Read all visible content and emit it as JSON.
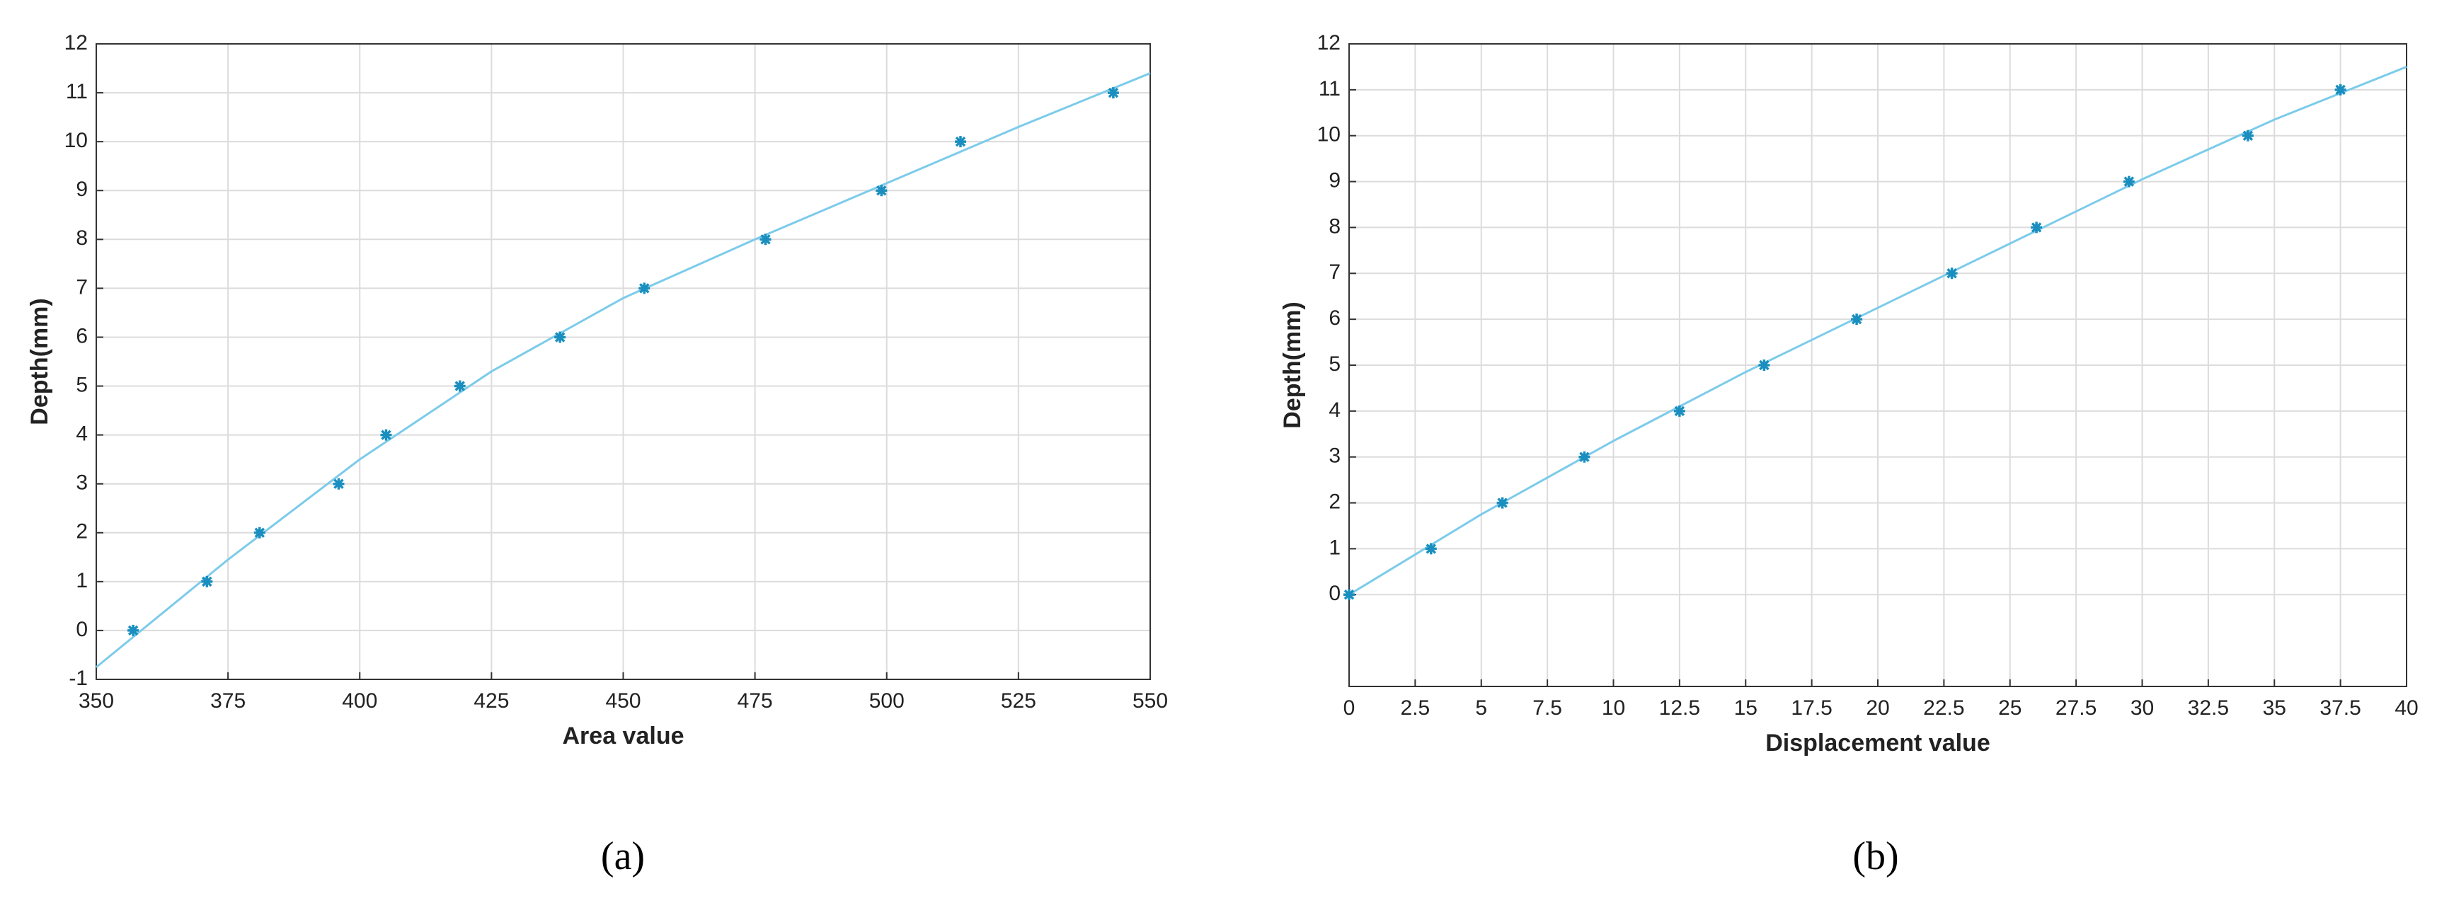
{
  "chart_data": [
    {
      "type": "scatter",
      "caption": "(a)",
      "x_label": "Area value",
      "y_label": "Depth(mm)",
      "x": [
        357,
        371,
        381,
        396,
        405,
        419,
        438,
        454,
        477,
        499,
        514,
        543
      ],
      "values": [
        0,
        1,
        2,
        3,
        4,
        5,
        6,
        7,
        8,
        9,
        10,
        11
      ],
      "fit_x": [
        350,
        375,
        400,
        425,
        450,
        475,
        500,
        525,
        550
      ],
      "fit_values": [
        -0.75,
        1.45,
        3.5,
        5.3,
        6.8,
        8.0,
        9.15,
        10.3,
        11.4
      ],
      "marker_color": "#1a8fbf",
      "line_color": "#7ccbea",
      "xlim": [
        350,
        550
      ],
      "xticks": [
        350,
        375,
        400,
        425,
        450,
        475,
        500,
        525,
        550
      ],
      "ylim": [
        -1,
        12
      ],
      "yticks": [
        -1,
        0,
        1,
        2,
        3,
        4,
        5,
        6,
        7,
        8,
        9,
        10,
        11,
        12
      ],
      "grid": true
    },
    {
      "type": "scatter",
      "caption": "(b)",
      "x_label": "Displacement value",
      "y_label": "Depth(mm)",
      "x": [
        0,
        3.1,
        5.8,
        8.9,
        12.5,
        15.7,
        19.2,
        22.8,
        26,
        29.5,
        34,
        37.5
      ],
      "values": [
        0,
        1,
        2,
        3,
        4,
        5,
        6,
        7,
        8,
        9,
        10,
        11
      ],
      "fit_x": [
        0,
        5,
        10,
        15,
        20,
        25,
        30,
        35,
        40
      ],
      "fit_values": [
        0,
        1.75,
        3.35,
        4.85,
        6.25,
        7.65,
        9.05,
        10.35,
        11.5
      ],
      "marker_color": "#1a8fbf",
      "line_color": "#7ccbea",
      "xlim": [
        0,
        40
      ],
      "xticks": [
        0,
        2.5,
        5,
        7.5,
        10,
        12.5,
        15,
        17.5,
        20,
        22.5,
        25,
        27.5,
        30,
        32.5,
        35,
        37.5,
        40
      ],
      "ylim": [
        -2,
        12
      ],
      "yticks": [
        0,
        1,
        2,
        3,
        4,
        5,
        6,
        7,
        8,
        9,
        10,
        11,
        12
      ],
      "grid": true
    }
  ]
}
